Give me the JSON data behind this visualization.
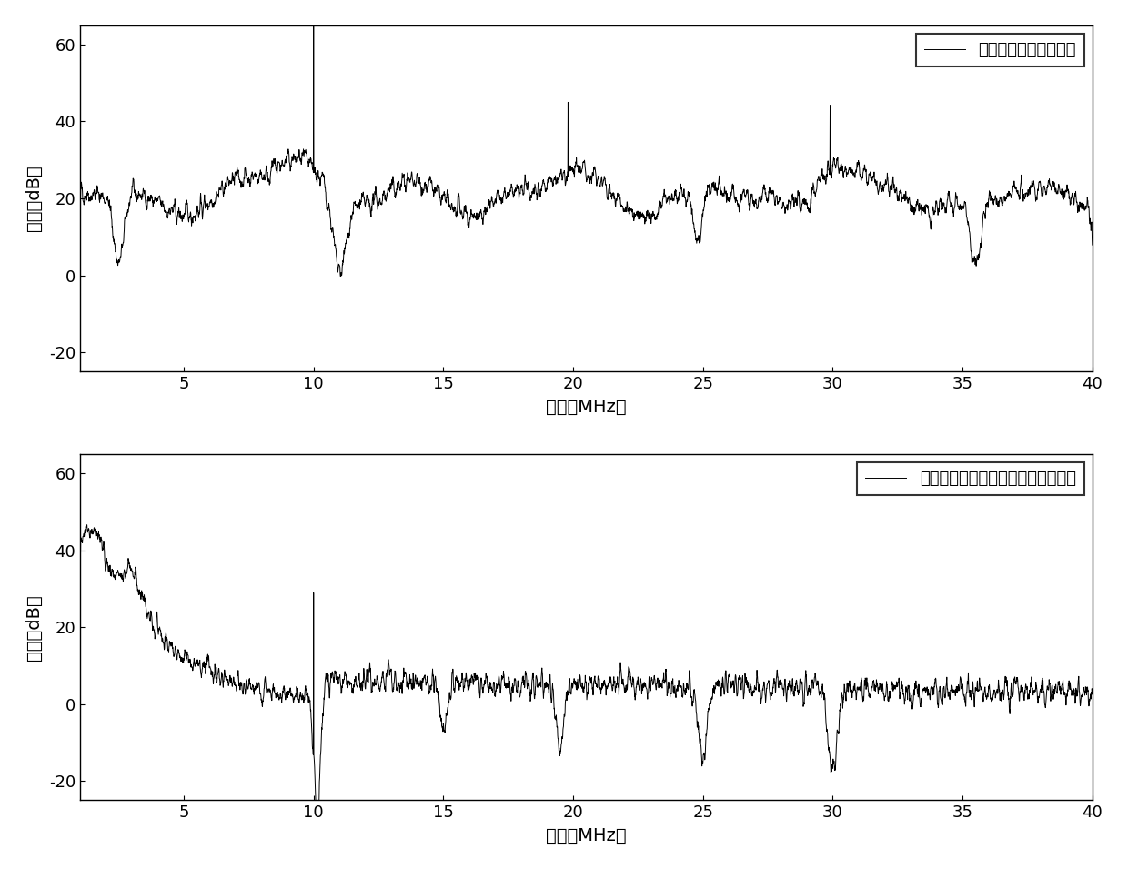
{
  "legend1": "辐射干扰测量信号频谱",
  "legend2": "辐射干扰平滑滤波加权谐波抑制频谱",
  "xlabel": "频率（MHz）",
  "ylabel": "幅度（dB）",
  "xlim": [
    1,
    40
  ],
  "ylim1": [
    -25,
    65
  ],
  "ylim2": [
    -25,
    65
  ],
  "yticks": [
    -20,
    0,
    20,
    40,
    60
  ],
  "xticks": [
    5,
    10,
    15,
    20,
    25,
    30,
    35,
    40
  ],
  "line_color": "#000000",
  "bg_color": "#ffffff",
  "figsize": [
    12.4,
    9.56
  ],
  "dpi": 100
}
